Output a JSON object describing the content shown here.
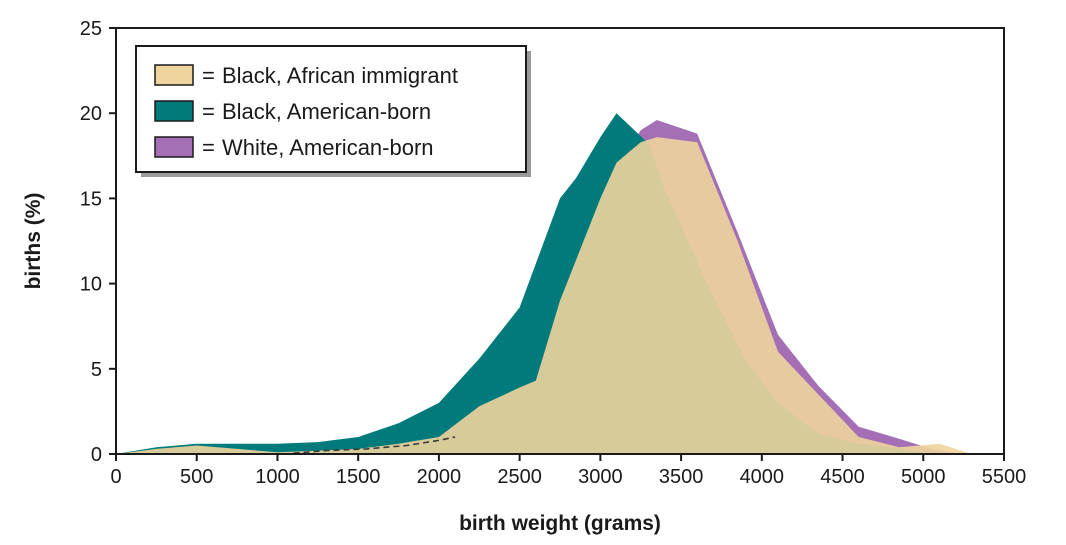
{
  "chart_data": {
    "type": "area",
    "xlabel": "birth weight (grams)",
    "ylabel": "births (%)",
    "xlim": [
      0,
      5500
    ],
    "ylim": [
      0,
      25
    ],
    "xticks": [
      0,
      500,
      1000,
      1500,
      2000,
      2500,
      3000,
      3500,
      4000,
      4500,
      5000,
      5500
    ],
    "yticks": [
      0,
      5,
      10,
      15,
      20,
      25
    ],
    "grid": false,
    "legend_position": "top-left",
    "legend_prefix": "=",
    "series": [
      {
        "name": "White, American-born",
        "color": "#a56fb5",
        "x": [
          0,
          250,
          500,
          750,
          1000,
          1250,
          1500,
          1750,
          2000,
          2100,
          2250,
          2500,
          2750,
          3000,
          3250,
          3350,
          3600,
          3850,
          4100,
          4350,
          4600,
          4850,
          5050,
          5250
        ],
        "y": [
          0,
          0.2,
          0.3,
          0.3,
          0.2,
          0.2,
          0.2,
          0.4,
          0.7,
          0.9,
          2.8,
          4.4,
          9.0,
          15.0,
          19.0,
          19.6,
          18.8,
          13.0,
          7.0,
          4.0,
          1.6,
          0.9,
          0.3,
          0
        ]
      },
      {
        "name": "Black, American-born",
        "color": "#007a7a",
        "x": [
          0,
          250,
          500,
          750,
          1000,
          1250,
          1500,
          1750,
          2000,
          2250,
          2500,
          2750,
          2850,
          3000,
          3100,
          3300,
          3400,
          3650,
          3900,
          4100,
          4350,
          4600,
          4850,
          5050
        ],
        "y": [
          0,
          0.4,
          0.6,
          0.6,
          0.6,
          0.7,
          1.0,
          1.8,
          3.0,
          5.6,
          8.6,
          15.0,
          16.2,
          18.6,
          20.0,
          18.2,
          15.5,
          10.2,
          5.5,
          3.0,
          1.2,
          0.6,
          0.3,
          0
        ]
      },
      {
        "name": "Black, African immigrant",
        "color": "#efd49d",
        "x": [
          0,
          250,
          500,
          750,
          1000,
          1250,
          1500,
          1750,
          2000,
          2250,
          2500,
          2600,
          2750,
          3000,
          3100,
          3250,
          3350,
          3600,
          3850,
          4100,
          4350,
          4600,
          4850,
          5100,
          5300
        ],
        "y": [
          0,
          0.3,
          0.5,
          0.3,
          0.1,
          0.2,
          0.3,
          0.6,
          1.0,
          2.8,
          3.9,
          4.3,
          9.0,
          15.0,
          17.1,
          18.3,
          18.6,
          18.3,
          12.5,
          6.0,
          3.5,
          1.0,
          0.4,
          0.6,
          0
        ]
      }
    ]
  }
}
